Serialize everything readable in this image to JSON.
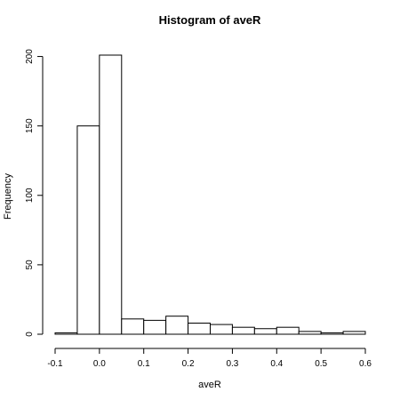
{
  "chart_data": {
    "type": "bar",
    "title": "Histogram of aveR",
    "xlabel": "aveR",
    "ylabel": "Frequency",
    "bins": [
      {
        "start": -0.1,
        "end": -0.05,
        "count": 1
      },
      {
        "start": -0.05,
        "end": 0.0,
        "count": 150
      },
      {
        "start": 0.0,
        "end": 0.05,
        "count": 201
      },
      {
        "start": 0.05,
        "end": 0.1,
        "count": 11
      },
      {
        "start": 0.1,
        "end": 0.15,
        "count": 10
      },
      {
        "start": 0.15,
        "end": 0.2,
        "count": 13
      },
      {
        "start": 0.2,
        "end": 0.25,
        "count": 8
      },
      {
        "start": 0.25,
        "end": 0.3,
        "count": 7
      },
      {
        "start": 0.3,
        "end": 0.35,
        "count": 5
      },
      {
        "start": 0.35,
        "end": 0.4,
        "count": 4
      },
      {
        "start": 0.4,
        "end": 0.45,
        "count": 5
      },
      {
        "start": 0.45,
        "end": 0.5,
        "count": 2
      },
      {
        "start": 0.5,
        "end": 0.55,
        "count": 1
      },
      {
        "start": 0.55,
        "end": 0.6,
        "count": 2
      }
    ],
    "xlim": [
      -0.1,
      0.6
    ],
    "ylim": [
      0,
      201
    ],
    "x_ticks": [
      "-0.1",
      "0.0",
      "0.1",
      "0.2",
      "0.3",
      "0.4",
      "0.5",
      "0.6"
    ],
    "x_tick_values": [
      -0.1,
      0.0,
      0.1,
      0.2,
      0.3,
      0.4,
      0.5,
      0.6
    ],
    "y_ticks": [
      "0",
      "50",
      "100",
      "150",
      "200"
    ],
    "y_tick_values": [
      0,
      50,
      100,
      150,
      200
    ],
    "grid": false,
    "legend": "none"
  }
}
